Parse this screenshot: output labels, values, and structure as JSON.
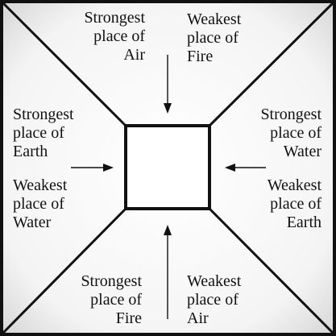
{
  "labels": {
    "top_left": [
      "Strongest",
      "place of",
      "Air"
    ],
    "top_right": [
      "Weakest",
      "place of",
      "Fire"
    ],
    "left_upper": [
      "Strongest",
      "place of",
      "Earth"
    ],
    "left_lower": [
      "Weakest",
      "place of",
      "Water"
    ],
    "right_upper": [
      "Strongest",
      "place of",
      "Water"
    ],
    "right_lower": [
      "Weakest",
      "place of",
      "Earth"
    ],
    "bottom_left": [
      "Strongest",
      "place of",
      "Fire"
    ],
    "bottom_right": [
      "Weakest",
      "place of",
      "Air"
    ]
  },
  "colors": {
    "stroke": "#111111",
    "background_edge": "#d8d8d8",
    "background_center": "#ffffff"
  }
}
